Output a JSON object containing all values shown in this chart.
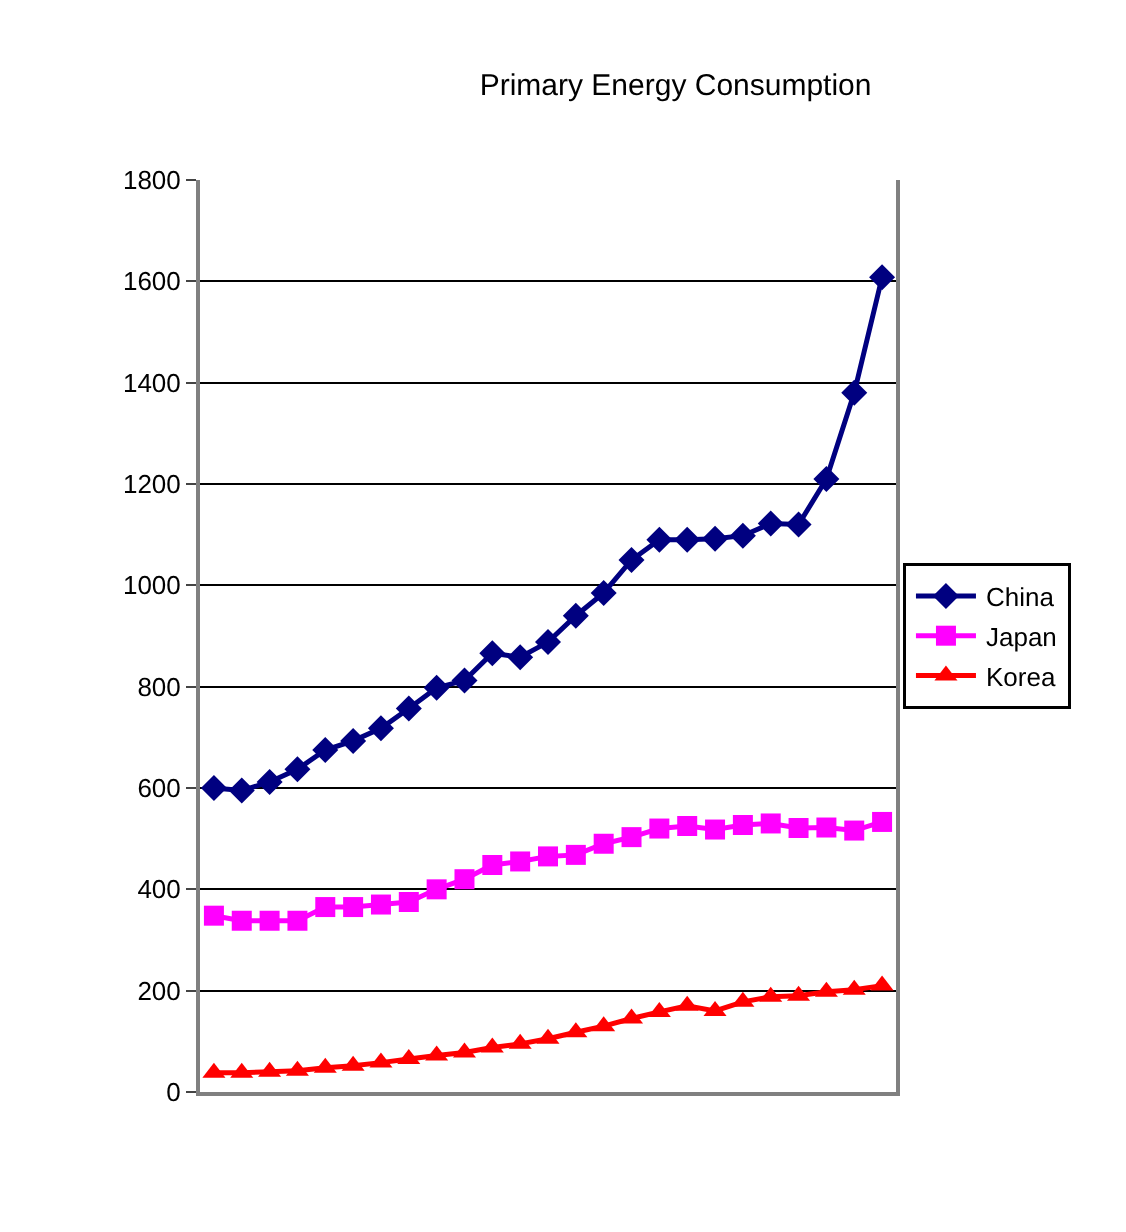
{
  "chart_data": {
    "type": "line",
    "title": "Primary Energy Consumption",
    "categories": [
      null,
      null,
      null,
      null,
      null,
      null,
      null,
      null,
      null,
      null,
      null,
      null,
      null,
      null,
      null,
      null,
      null,
      null,
      null,
      null,
      null,
      null,
      null,
      null,
      null
    ],
    "series": [
      {
        "name": "China",
        "color": "#000080",
        "marker": "diamond",
        "values": [
          600,
          595,
          612,
          637,
          675,
          693,
          718,
          757,
          798,
          812,
          866,
          858,
          888,
          940,
          985,
          1050,
          1090,
          1090,
          1092,
          1098,
          1122,
          1120,
          1210,
          1380,
          1608
        ]
      },
      {
        "name": "Japan",
        "color": "#ff00ff",
        "marker": "square",
        "values": [
          348,
          338,
          338,
          338,
          365,
          365,
          370,
          375,
          400,
          420,
          448,
          455,
          465,
          468,
          490,
          503,
          520,
          525,
          518,
          527,
          530,
          521,
          522,
          516,
          533
        ]
      },
      {
        "name": "Korea",
        "color": "#ff0000",
        "marker": "triangle",
        "values": [
          38,
          38,
          40,
          42,
          48,
          52,
          58,
          65,
          72,
          78,
          88,
          95,
          105,
          118,
          130,
          145,
          158,
          170,
          160,
          178,
          188,
          190,
          198,
          202,
          210
        ]
      }
    ],
    "ylim": [
      0,
      1800
    ],
    "yticks": [
      0,
      200,
      400,
      600,
      800,
      1000,
      1200,
      1400,
      1600,
      1800
    ],
    "grid": "y",
    "legend": "right",
    "line_style": "solid"
  }
}
